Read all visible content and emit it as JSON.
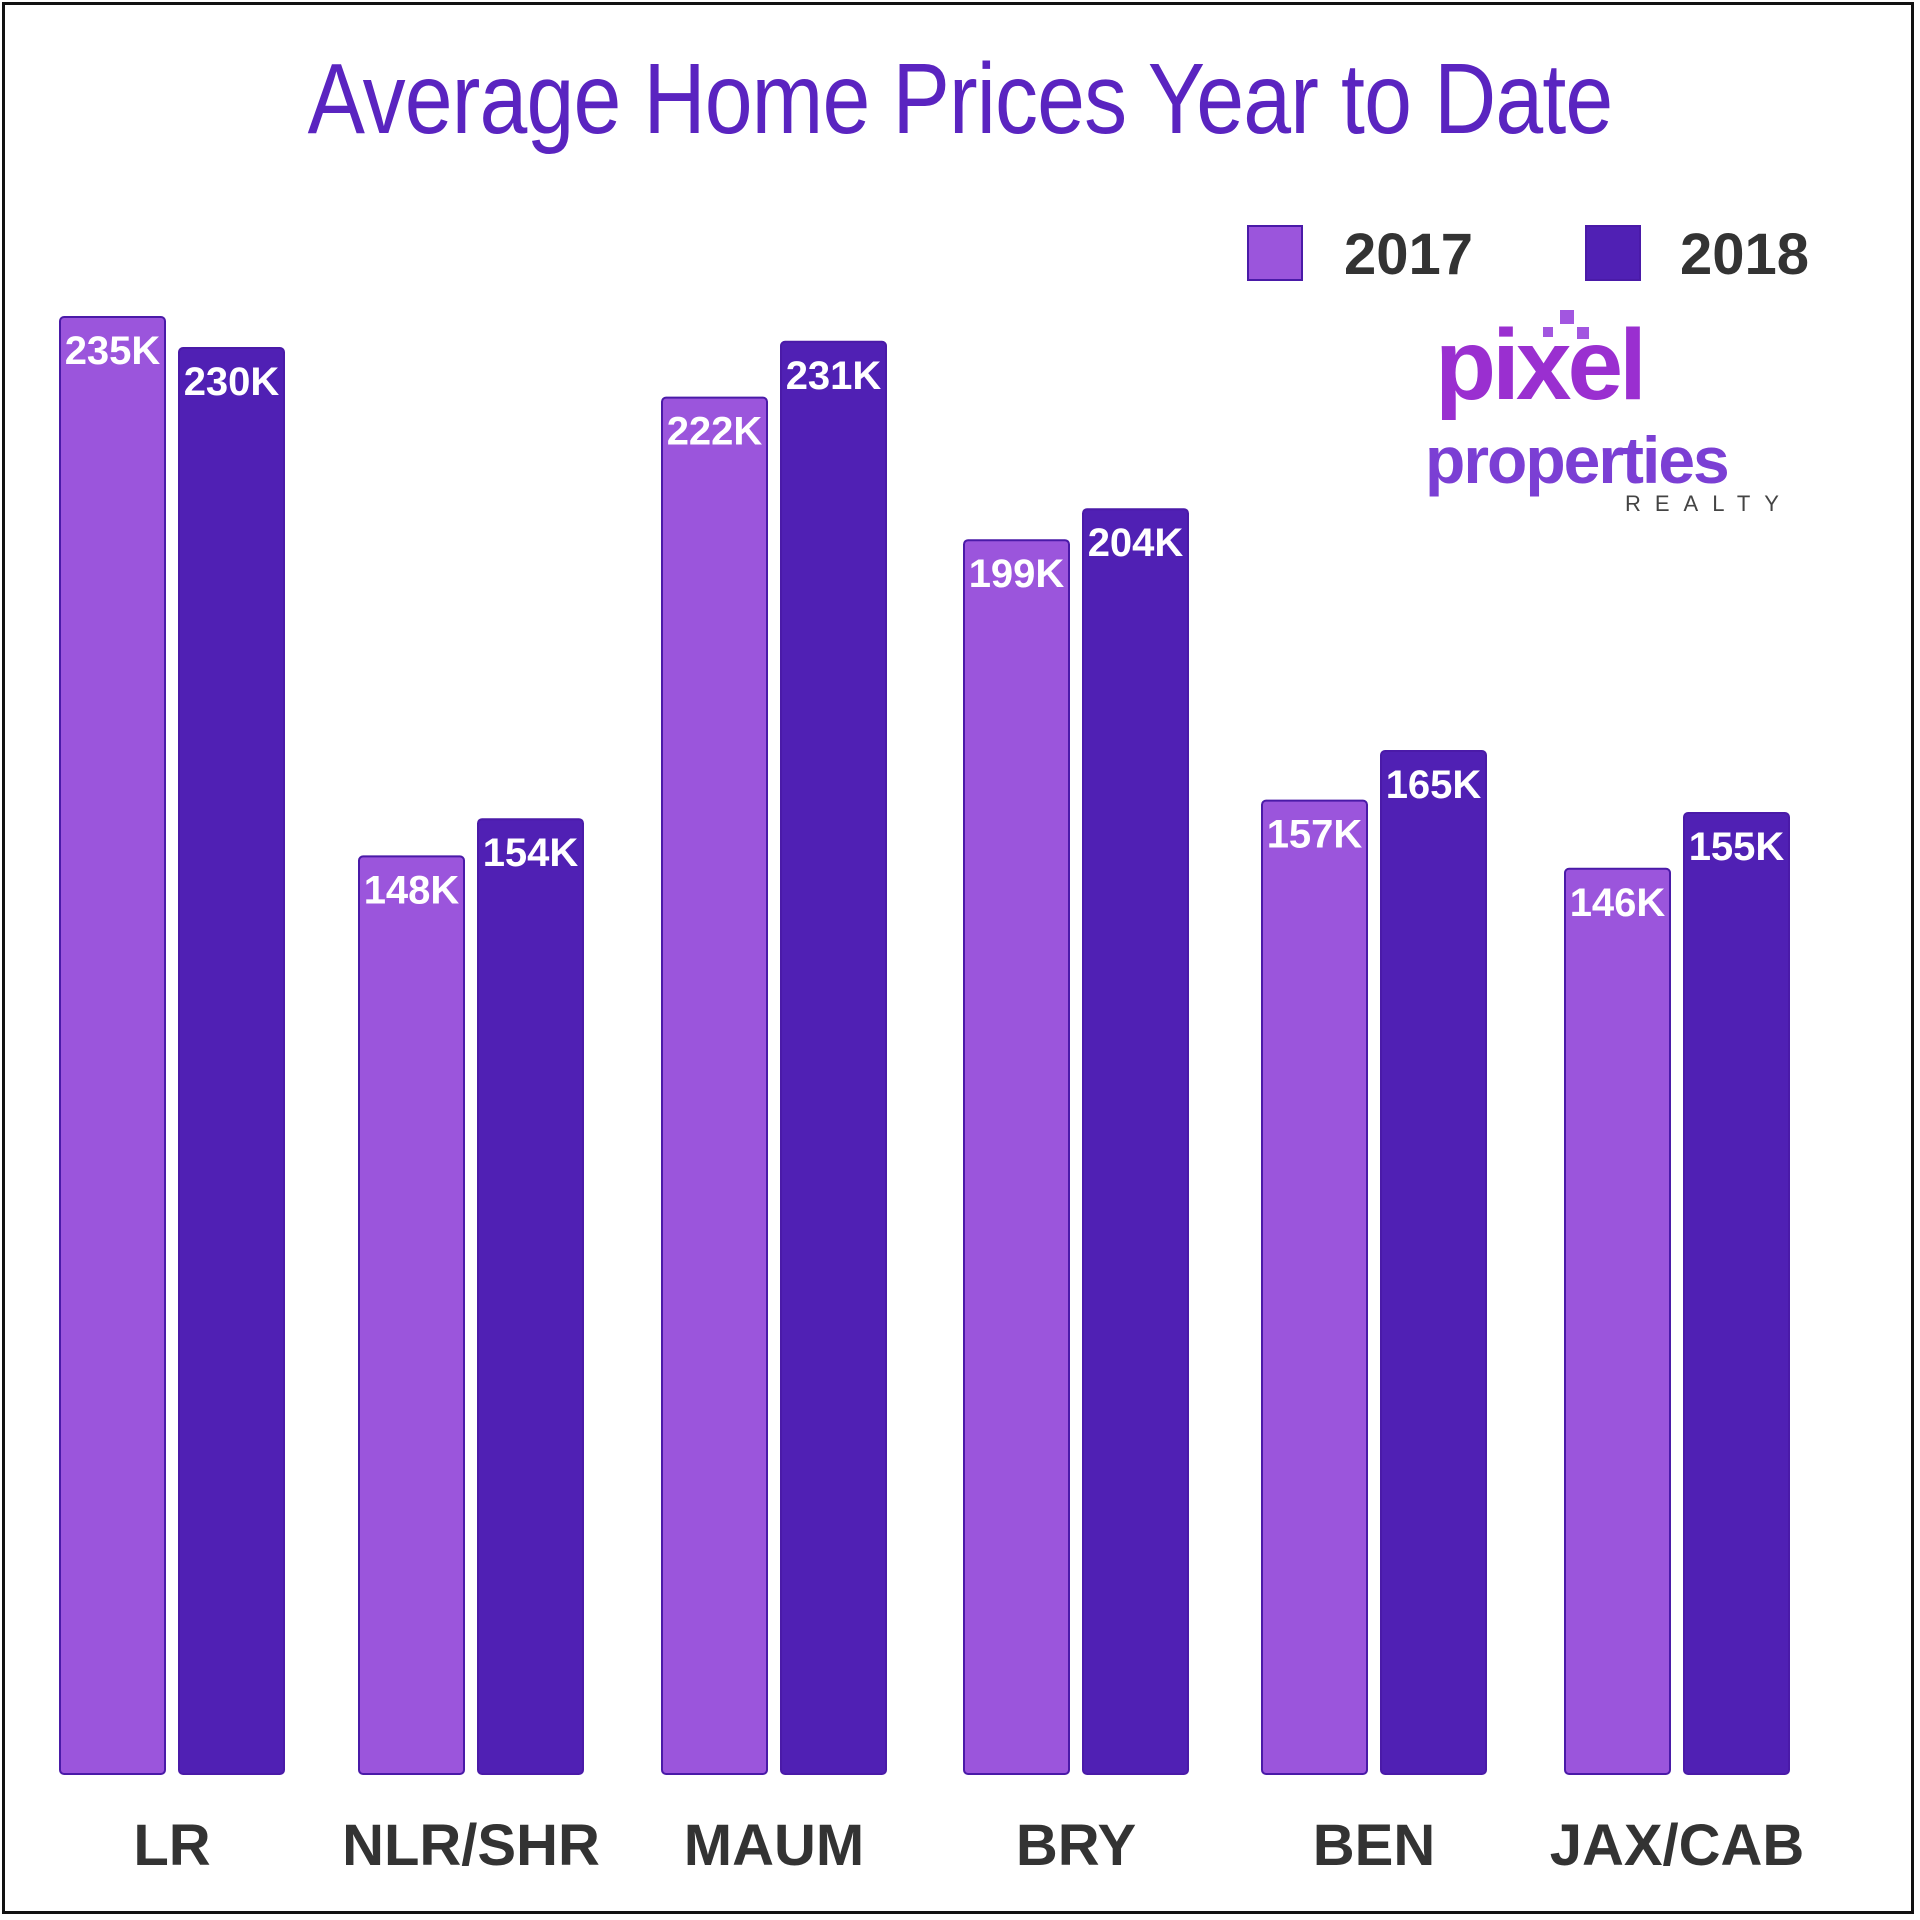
{
  "chart_data": {
    "type": "bar",
    "title": "Average Home Prices Year to Date",
    "categories": [
      "LR",
      "NLR/SHR",
      "MAUM",
      "BRY",
      "BEN",
      "JAX/CAB"
    ],
    "series": [
      {
        "name": "2017",
        "color": "#9b55dc",
        "values": [
          235,
          148,
          222,
          199,
          157,
          146
        ],
        "labels": [
          "235K",
          "148K",
          "222K",
          "199K",
          "157K",
          "146K"
        ]
      },
      {
        "name": "2018",
        "color": "#5020b4",
        "values": [
          230,
          154,
          231,
          204,
          165,
          155
        ],
        "labels": [
          "230K",
          "154K",
          "231K",
          "204K",
          "165K",
          "155K"
        ]
      }
    ],
    "legend_position": "top-right",
    "grid": false,
    "ylim": [
      0,
      235
    ],
    "unit": "K"
  },
  "colors": {
    "title": "#5a24c0",
    "border": "#111111",
    "bar_outline": "#4a1aa8"
  },
  "logo": {
    "word1": "pixel",
    "word2": "properties",
    "word3": "REALTY"
  }
}
